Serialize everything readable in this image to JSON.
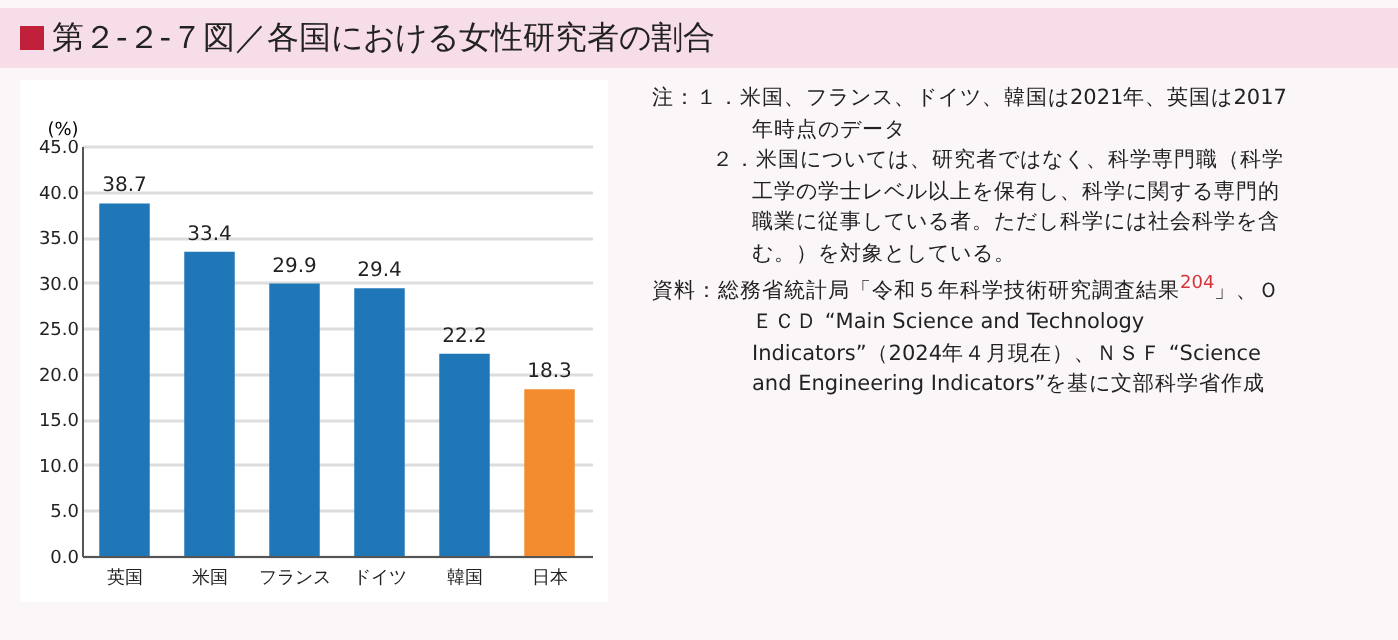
{
  "chart_data": {
    "type": "bar",
    "title": "第２-２-７図／各国における女性研究者の割合",
    "ylabel": "(%)",
    "categories": [
      "英国",
      "米国",
      "フランス",
      "ドイツ",
      "韓国",
      "日本"
    ],
    "values": [
      38.7,
      33.4,
      29.9,
      29.4,
      22.2,
      18.3
    ],
    "colors": [
      "#1f77b8",
      "#1f77b8",
      "#1f77b8",
      "#1f77b8",
      "#1f77b8",
      "#f28c2e"
    ],
    "ylim": [
      0,
      45
    ],
    "yticks": [
      {
        "value": 0,
        "label": "0.0"
      },
      {
        "value": 5,
        "label": "5.0"
      },
      {
        "value": 10,
        "label": "10.0"
      },
      {
        "value": 15,
        "label": "15.0"
      },
      {
        "value": 20,
        "label": "20.0"
      },
      {
        "value": 25,
        "label": "25.0"
      },
      {
        "value": 30,
        "label": "30.0"
      },
      {
        "value": 35,
        "label": "35.0"
      },
      {
        "value": 40,
        "label": "40.0"
      },
      {
        "value": 45,
        "label": "45.0"
      }
    ],
    "grid": "y",
    "data_labels": true,
    "annotations": [
      "注：１．米国、フランス、ドイツ、韓国は2021年、英国は2017年時点のデータ",
      "２．米国については、研究者ではなく、科学専門職（科学工学の学士レベル以上を保有し、科学に関する専門的職業に従事している者。ただし科学には社会科学を含む。）を対象としている。",
      "資料：総務省統計局「令和５年科学技術研究調査結果$^{204}$」、ＯＥＣＤ “Main Science and Technology Indicators”（2024年４月現在）、ＮＳＦ “Science and Engineering Indicators”を基に文部科学省作成"
    ]
  }
}
